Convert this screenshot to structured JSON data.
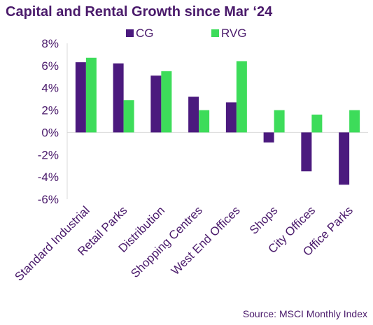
{
  "chart_data": {
    "type": "bar",
    "title": "Capital and Rental Growth since Mar ‘24",
    "categories": [
      "Standard Industrial",
      "Retail Parks",
      "Distribution",
      "Shopping Centres",
      "West End Offices",
      "Shops",
      "City Offices",
      "Office Parks"
    ],
    "series": [
      {
        "name": "CG",
        "values": [
          6.3,
          6.2,
          5.1,
          3.2,
          2.7,
          -0.9,
          -3.5,
          -4.7
        ],
        "color": "#4b1a7e"
      },
      {
        "name": "RVG",
        "values": [
          6.7,
          2.9,
          5.5,
          2.0,
          6.4,
          2.0,
          1.6,
          2.0
        ],
        "color": "#3ddc5a"
      }
    ],
    "ylim": [
      -6,
      8
    ],
    "yticks": [
      "8%",
      "6%",
      "4%",
      "2%",
      "0%",
      "-2%",
      "-4%",
      "-6%"
    ],
    "ytick_values": [
      8,
      6,
      4,
      2,
      0,
      -2,
      -4,
      -6
    ],
    "grid": false,
    "legend_position": "top",
    "source": "Source: MSCI Monthly Index"
  }
}
